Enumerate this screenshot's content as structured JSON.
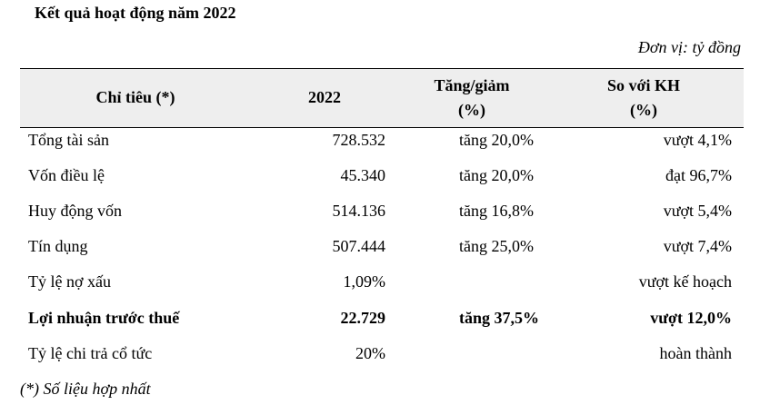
{
  "title": "Kết quả hoạt động năm 2022",
  "unit": "Đơn vị: tỷ đồng",
  "headers": {
    "indicator": "Chỉ tiêu (*)",
    "year": "2022",
    "change_line1": "Tăng/giảm",
    "change_line2": "(%)",
    "plan_line1": "So với KH",
    "plan_line2": "(%)"
  },
  "rows": [
    {
      "indicator": "Tổng tài sản",
      "value": "728.532",
      "change": "tăng 20,0%",
      "plan": "vượt 4,1%",
      "bold": false
    },
    {
      "indicator": "Vốn điều lệ",
      "value": "45.340",
      "change": "tăng 20,0%",
      "plan": "đạt 96,7%",
      "bold": false
    },
    {
      "indicator": "Huy động vốn",
      "value": "514.136",
      "change": "tăng 16,8%",
      "plan": "vượt 5,4%",
      "bold": false
    },
    {
      "indicator": "Tín dụng",
      "value": "507.444",
      "change": "tăng 25,0%",
      "plan": "vượt 7,4%",
      "bold": false
    },
    {
      "indicator": "Tỷ lệ nợ xấu",
      "value": "1,09%",
      "change": "",
      "plan": "vượt kế hoạch",
      "bold": false
    },
    {
      "indicator": "Lợi nhuận trước thuế",
      "value": "22.729",
      "change": "tăng 37,5%",
      "plan": "vượt 12,0%",
      "bold": true
    },
    {
      "indicator": "Tỷ lệ chi trả cổ tức",
      "value": "20%",
      "change": "",
      "plan": "hoàn thành",
      "bold": false
    }
  ],
  "footnote": "(*) Số liệu hợp nhất"
}
